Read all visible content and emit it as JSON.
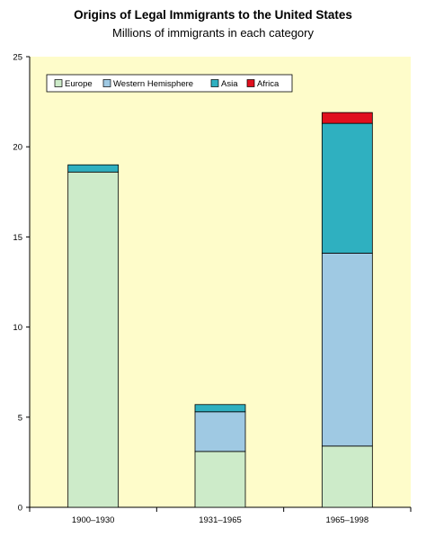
{
  "chart_data": {
    "type": "bar",
    "stacked": true,
    "title": "Origins of Legal Immigrants to the United States",
    "subtitle": "Millions of immigrants in each category",
    "xlabel": "",
    "ylabel": "",
    "categories": [
      "1900–1930",
      "1931–1965",
      "1965–1998"
    ],
    "ylim": [
      0,
      25
    ],
    "yticks": [
      0,
      5,
      10,
      15,
      20,
      25
    ],
    "grid": false,
    "legend_position": "top-left",
    "series": [
      {
        "name": "Europe",
        "color": "#cdebc9",
        "values": [
          18.6,
          3.1,
          3.4
        ]
      },
      {
        "name": "Western Hemisphere",
        "color": "#9fc9e3",
        "values": [
          0.0,
          2.2,
          10.7
        ]
      },
      {
        "name": "Asia",
        "color": "#2fb0c0",
        "values": [
          0.4,
          0.4,
          7.2
        ]
      },
      {
        "name": "Africa",
        "color": "#e0101e",
        "values": [
          0.0,
          0.0,
          0.6
        ]
      }
    ],
    "plot_background": "#fefcca"
  }
}
